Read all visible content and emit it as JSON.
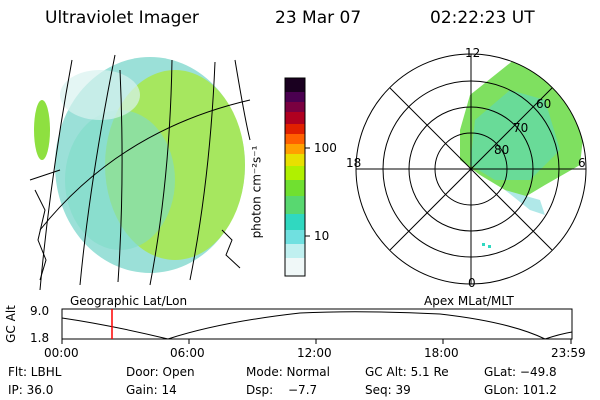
{
  "header": {
    "instrument": "Ultraviolet Imager",
    "date": "23 Mar 07",
    "time": "02:22:23 UT"
  },
  "left_panel": {
    "label": "Geographic Lat/Lon"
  },
  "colorbar": {
    "label": "photon cm⁻²s⁻¹",
    "ticks": [
      "100",
      "10"
    ],
    "colors": [
      "#1a0020",
      "#4a0050",
      "#7a0040",
      "#b00020",
      "#e02000",
      "#ff6000",
      "#ffa000",
      "#e8e000",
      "#b0f000",
      "#70e030",
      "#30d8c0",
      "#70e0e0",
      "#c0f0f0",
      "#f0f8f8"
    ]
  },
  "polar_panel": {
    "label": "Apex MLat/MLT",
    "mlt_labels": [
      "12",
      "18",
      "6",
      "0"
    ],
    "lat_labels": [
      "60",
      "70",
      "80"
    ]
  },
  "gc_plot": {
    "ylabel": "GC Alt",
    "y_ticks": [
      "9.0",
      "1.8"
    ],
    "x_ticks": [
      "00:00",
      "06:00",
      "12:00",
      "18:00",
      "23:59"
    ],
    "current_time_color": "#ff0000"
  },
  "info_rows": [
    [
      "Flt: LBHL",
      "Door: Open",
      "Mode: Normal",
      "GC Alt: 5.1 Re",
      "GLat: −49.8"
    ],
    [
      "IP: 36.0",
      "Gain: 14",
      "Dsp:",
      "−7.7",
      "Seq: 39",
      "GLon: 101.2"
    ]
  ]
}
